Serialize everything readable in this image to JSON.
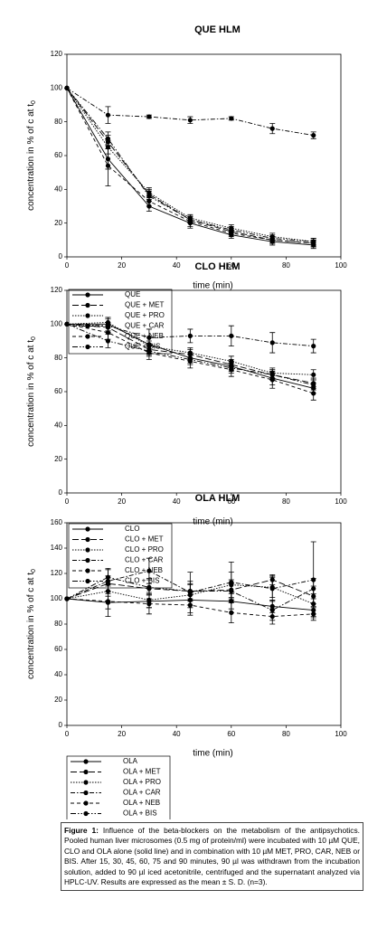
{
  "chart_data": [
    {
      "type": "line",
      "title": "QUE HLM",
      "x_label": "time (min)",
      "y_label": "concentration in % of c at t",
      "y_label_sub": "0",
      "x": [
        0,
        15,
        30,
        45,
        60,
        75,
        90
      ],
      "xlim": [
        0,
        100
      ],
      "xticks": [
        0,
        20,
        40,
        60,
        80,
        100
      ],
      "ylim": [
        0,
        120
      ],
      "yticks": [
        0,
        20,
        40,
        60,
        80,
        100,
        120
      ],
      "series": [
        {
          "name": "QUE",
          "color": "#000000",
          "dash": "solid",
          "values": [
            100,
            58,
            30,
            20,
            13,
            9,
            7
          ],
          "errors": [
            0,
            6,
            3,
            3,
            2,
            2,
            2
          ]
        },
        {
          "name": "QUE + MET",
          "color": "#000000",
          "dash": "longdash",
          "values": [
            100,
            68,
            37,
            22,
            15,
            10,
            8
          ],
          "errors": [
            0,
            4,
            3,
            2,
            2,
            2,
            2
          ]
        },
        {
          "name": "QUE + PRO",
          "color": "#000000",
          "dash": "dotted",
          "values": [
            100,
            65,
            38,
            23,
            17,
            12,
            9
          ],
          "errors": [
            0,
            4,
            3,
            2,
            2,
            2,
            2
          ]
        },
        {
          "name": "QUE + CAR",
          "color": "#000000",
          "dash": "dashdot",
          "values": [
            100,
            84,
            83,
            81,
            82,
            76,
            72
          ],
          "errors": [
            0,
            5,
            1,
            2,
            1,
            3,
            2
          ]
        },
        {
          "name": "QUE + NEB",
          "color": "#000000",
          "dash": "dashed",
          "values": [
            100,
            54,
            33,
            21,
            14,
            10,
            8
          ],
          "errors": [
            0,
            12,
            3,
            3,
            2,
            2,
            2
          ]
        },
        {
          "name": "QUE + BIS",
          "color": "#000000",
          "dash": "dashdotdot",
          "values": [
            100,
            70,
            36,
            22,
            16,
            11,
            9
          ],
          "errors": [
            0,
            4,
            3,
            2,
            2,
            2,
            2
          ]
        }
      ]
    },
    {
      "type": "line",
      "title": "CLO HLM",
      "x_label": "time (min)",
      "y_label": "concentration in % of c at t",
      "y_label_sub": "0",
      "x": [
        0,
        15,
        30,
        45,
        60,
        75,
        90
      ],
      "xlim": [
        0,
        100
      ],
      "xticks": [
        0,
        20,
        40,
        60,
        80,
        100
      ],
      "ylim": [
        0,
        120
      ],
      "yticks": [
        0,
        20,
        40,
        60,
        80,
        100,
        120
      ],
      "series": [
        {
          "name": "CLO",
          "color": "#000000",
          "dash": "solid",
          "values": [
            100,
            100,
            88,
            80,
            75,
            68,
            62
          ],
          "errors": [
            0,
            4,
            4,
            3,
            3,
            4,
            3
          ]
        },
        {
          "name": "CLO + MET",
          "color": "#000000",
          "dash": "longdash",
          "values": [
            100,
            98,
            85,
            82,
            76,
            70,
            65
          ],
          "errors": [
            0,
            3,
            3,
            3,
            3,
            3,
            3
          ]
        },
        {
          "name": "CLO + PRO",
          "color": "#000000",
          "dash": "dotted",
          "values": [
            100,
            101,
            87,
            83,
            78,
            71,
            70
          ],
          "errors": [
            0,
            3,
            3,
            3,
            3,
            3,
            3
          ]
        },
        {
          "name": "CLO + CAR",
          "color": "#000000",
          "dash": "dashdot",
          "values": [
            100,
            99,
            92,
            93,
            93,
            89,
            87
          ],
          "errors": [
            0,
            4,
            5,
            4,
            6,
            6,
            4
          ]
        },
        {
          "name": "CLO + NEB",
          "color": "#000000",
          "dash": "dashed",
          "values": [
            100,
            95,
            83,
            78,
            73,
            67,
            59
          ],
          "errors": [
            0,
            4,
            4,
            4,
            4,
            5,
            4
          ]
        },
        {
          "name": "CLO + BIS",
          "color": "#000000",
          "dash": "dashdotdot",
          "values": [
            100,
            90,
            84,
            79,
            74,
            70,
            64
          ],
          "errors": [
            0,
            4,
            3,
            3,
            3,
            3,
            3
          ]
        }
      ]
    },
    {
      "type": "line",
      "title": "OLA HLM",
      "x_label": "time (min)",
      "y_label": "concentration in % of c at t",
      "y_label_sub": "0",
      "x": [
        0,
        15,
        30,
        45,
        60,
        75,
        90
      ],
      "xlim": [
        0,
        100
      ],
      "xticks": [
        0,
        20,
        40,
        60,
        80,
        100
      ],
      "ylim": [
        0,
        160
      ],
      "yticks": [
        0,
        20,
        40,
        60,
        80,
        100,
        120,
        140,
        160
      ],
      "series": [
        {
          "name": "OLA",
          "color": "#000000",
          "dash": "solid",
          "values": [
            100,
            97,
            98,
            99,
            98,
            94,
            91
          ],
          "errors": [
            0,
            5,
            5,
            6,
            6,
            5,
            5
          ]
        },
        {
          "name": "OLA + MET",
          "color": "#000000",
          "dash": "longdash",
          "values": [
            100,
            112,
            108,
            106,
            107,
            115,
            102
          ],
          "errors": [
            0,
            6,
            8,
            8,
            8,
            4,
            8
          ]
        },
        {
          "name": "OLA + PRO",
          "color": "#000000",
          "dash": "dotted",
          "values": [
            100,
            106,
            99,
            103,
            111,
            109,
            96
          ],
          "errors": [
            0,
            8,
            6,
            8,
            10,
            8,
            8
          ]
        },
        {
          "name": "OLA + CAR",
          "color": "#000000",
          "dash": "dashdot",
          "values": [
            100,
            114,
            122,
            105,
            113,
            108,
            115
          ],
          "errors": [
            0,
            10,
            10,
            16,
            16,
            10,
            30
          ]
        },
        {
          "name": "OLA + NEB",
          "color": "#000000",
          "dash": "dashed",
          "values": [
            100,
            98,
            96,
            95,
            89,
            86,
            88
          ],
          "errors": [
            0,
            12,
            8,
            8,
            8,
            6,
            5
          ]
        },
        {
          "name": "OLA + BIS",
          "color": "#000000",
          "dash": "dashdotdot",
          "values": [
            100,
            117,
            109,
            106,
            106,
            91,
            108
          ],
          "errors": [
            0,
            6,
            6,
            6,
            6,
            8,
            8
          ]
        }
      ]
    }
  ],
  "caption": {
    "label": "Figure 1:",
    "text": "Influence of the beta-blockers on the metabolism of the antipsychotics. Pooled human liver microsomes (0.5 mg of protein/ml) were incubated with 10 µM QUE, CLO and OLA alone (solid line) and in combination with 10 µM MET, PRO, CAR, NEB or BIS. After 15, 30, 45, 60, 75 and 90 minutes, 90 µl was withdrawn from the incubation solution, added to 90 µl iced acetonitrile, centrifuged and the supernatant analyzed via HPLC-UV. Results are expressed as the mean ± S. D. (n=3)."
  }
}
